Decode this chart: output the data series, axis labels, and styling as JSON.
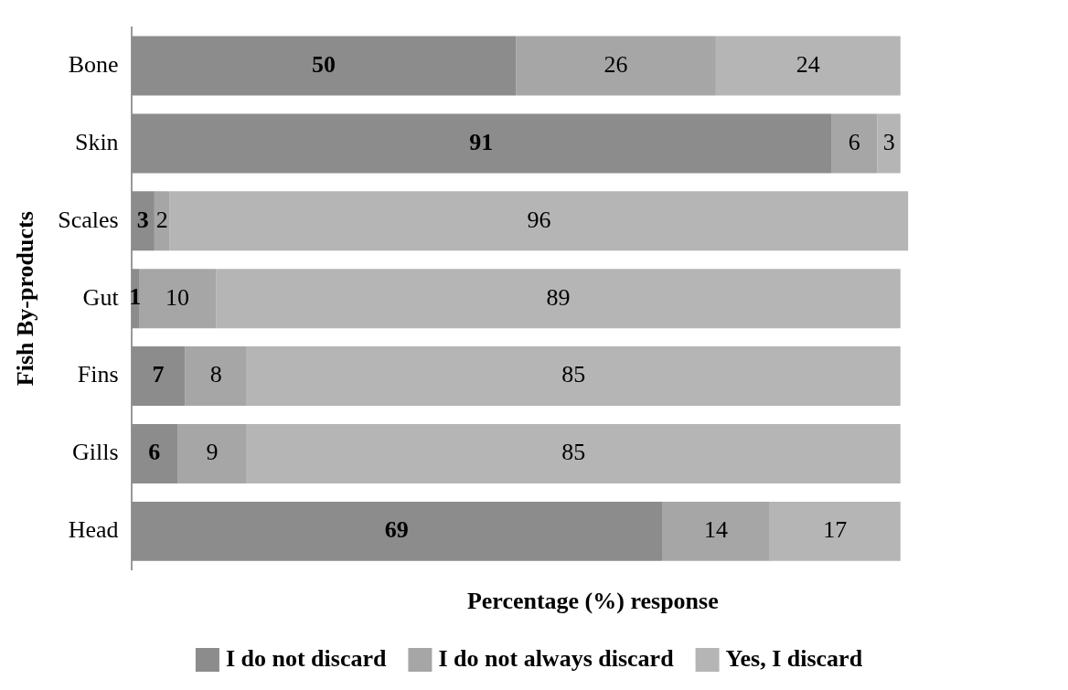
{
  "chart_data": {
    "type": "bar",
    "orientation": "horizontal",
    "stacked": true,
    "xlabel": "Percentage (%) response",
    "ylabel": "Fish By-products",
    "categories": [
      "Bone",
      "Skin",
      "Scales",
      "Gut",
      "Fins",
      "Gills",
      "Head"
    ],
    "series": [
      {
        "name": "I do not discard",
        "color": "#8c8c8c",
        "values": [
          50,
          91,
          3,
          1,
          7,
          6,
          69
        ]
      },
      {
        "name": "I do not always discard",
        "color": "#a6a6a6",
        "values": [
          26,
          6,
          2,
          10,
          8,
          9,
          14
        ]
      },
      {
        "name": "Yes, I discard",
        "color": "#b5b5b5",
        "values": [
          24,
          3,
          96,
          89,
          85,
          85,
          17
        ]
      }
    ],
    "data_labels": true,
    "legend": "bottom",
    "grid": false,
    "tick_labels": "y"
  }
}
